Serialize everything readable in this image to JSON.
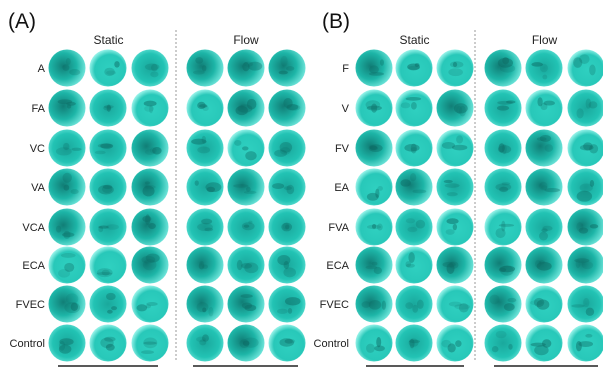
{
  "panels": [
    {
      "label": "(A)",
      "groups": [
        "Static",
        "Flow"
      ],
      "rows": [
        "A",
        "FA",
        "VC",
        "VA",
        "VCA",
        "ECA",
        "FVEC",
        "Control"
      ]
    },
    {
      "label": "(B)",
      "groups": [
        "Static",
        "Flow"
      ],
      "rows": [
        "F",
        "V",
        "FV",
        "EA",
        "FVA",
        "ECA",
        "FVEC",
        "Control"
      ]
    }
  ]
}
